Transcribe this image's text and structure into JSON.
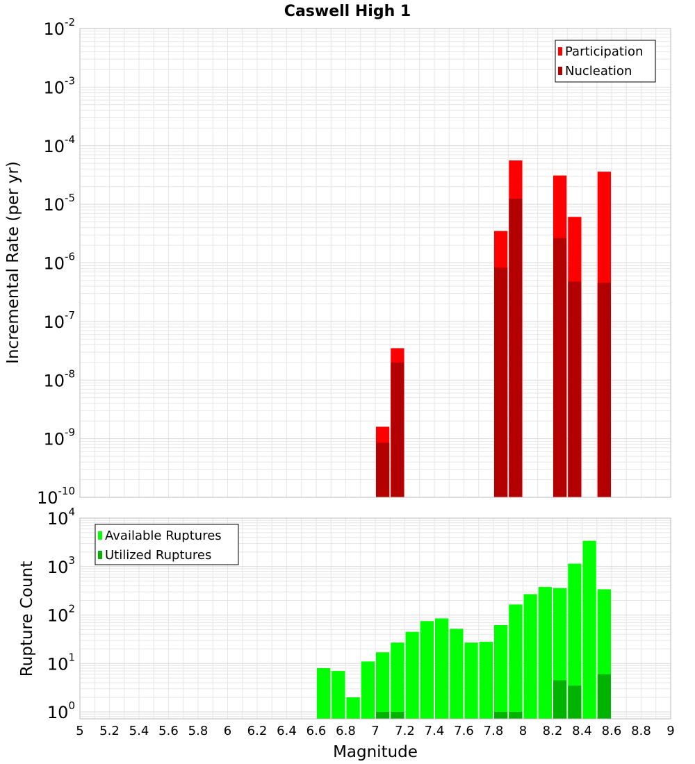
{
  "title": "Caswell High 1",
  "colors": {
    "participation": "#ff0000",
    "nucleation": "#b30000",
    "available": "#00ff00",
    "utilized": "#00b300",
    "grid": "#e6e6e6",
    "plot_border": "#bbbbbb"
  },
  "chart_data": [
    {
      "name": "rate-panel",
      "type": "bar",
      "title": "Caswell High 1",
      "xlabel": "",
      "ylabel": "Incremental Rate (per yr)",
      "xlim": [
        5,
        9
      ],
      "ylim": [
        1e-10,
        0.01
      ],
      "yscale": "log",
      "grid": true,
      "bar_width": 0.1,
      "y_ticks": [
        {
          "base": "10",
          "exp": "-10",
          "value": 1e-10
        },
        {
          "base": "10",
          "exp": "-9",
          "value": 1e-09
        },
        {
          "base": "10",
          "exp": "-8",
          "value": 1e-08
        },
        {
          "base": "10",
          "exp": "-7",
          "value": 1e-07
        },
        {
          "base": "10",
          "exp": "-6",
          "value": 1e-06
        },
        {
          "base": "10",
          "exp": "-5",
          "value": 1e-05
        },
        {
          "base": "10",
          "exp": "-4",
          "value": 0.0001
        },
        {
          "base": "10",
          "exp": "-3",
          "value": 0.001
        },
        {
          "base": "10",
          "exp": "-2",
          "value": 0.01
        }
      ],
      "legend_position": "top-right",
      "legend": [
        {
          "label": "Participation",
          "color_key": "participation"
        },
        {
          "label": "Nucleation",
          "color_key": "nucleation"
        }
      ],
      "series": [
        {
          "name": "Participation",
          "color_key": "participation",
          "x": [
            7.05,
            7.15,
            7.85,
            7.95,
            8.25,
            8.35,
            8.55
          ],
          "values": [
            1.6e-09,
            3.5e-08,
            3.5e-06,
            5.6e-05,
            3.1e-05,
            6.1e-06,
            3.6e-05
          ]
        },
        {
          "name": "Nucleation",
          "color_key": "nucleation",
          "x": [
            7.05,
            7.15,
            7.85,
            7.95,
            8.25,
            8.35,
            8.55
          ],
          "values": [
            8.5e-10,
            2e-08,
            8.3e-07,
            1.25e-05,
            2.65e-06,
            4.8e-07,
            4.6e-07
          ]
        }
      ]
    },
    {
      "name": "count-panel",
      "type": "bar",
      "xlabel": "Magnitude",
      "ylabel": "Rupture Count",
      "xlim": [
        5,
        9
      ],
      "ylim": [
        0.72,
        10000
      ],
      "yscale": "log",
      "grid": true,
      "bar_width": 0.1,
      "x_ticks": [
        "5",
        "5.2",
        "5.4",
        "5.6",
        "5.8",
        "6",
        "6.2",
        "6.4",
        "6.6",
        "6.8",
        "7",
        "7.2",
        "7.4",
        "7.6",
        "7.8",
        "8",
        "8.2",
        "8.4",
        "8.6",
        "8.8",
        "9"
      ],
      "y_ticks": [
        {
          "base": "10",
          "exp": "0",
          "value": 1
        },
        {
          "base": "10",
          "exp": "1",
          "value": 10
        },
        {
          "base": "10",
          "exp": "2",
          "value": 100
        },
        {
          "base": "10",
          "exp": "3",
          "value": 1000
        },
        {
          "base": "10",
          "exp": "4",
          "value": 10000
        }
      ],
      "legend_position": "top-left",
      "legend": [
        {
          "label": "Available Ruptures",
          "color_key": "available"
        },
        {
          "label": "Utilized Ruptures",
          "color_key": "utilized"
        }
      ],
      "series": [
        {
          "name": "Available Ruptures",
          "color_key": "available",
          "x": [
            6.65,
            6.75,
            6.85,
            6.95,
            7.05,
            7.15,
            7.25,
            7.35,
            7.45,
            7.55,
            7.65,
            7.75,
            7.85,
            7.95,
            8.05,
            8.15,
            8.25,
            8.35,
            8.45,
            8.55
          ],
          "values": [
            8,
            7,
            2,
            11,
            17,
            27,
            45,
            75,
            85,
            52,
            27,
            28,
            62,
            165,
            270,
            380,
            360,
            1150,
            3400,
            340
          ]
        },
        {
          "name": "Utilized Ruptures",
          "color_key": "utilized",
          "x": [
            7.05,
            7.15,
            7.85,
            7.95,
            8.25,
            8.35,
            8.55
          ],
          "values": [
            1,
            1,
            1,
            1,
            4.5,
            3.5,
            6
          ]
        }
      ]
    }
  ]
}
